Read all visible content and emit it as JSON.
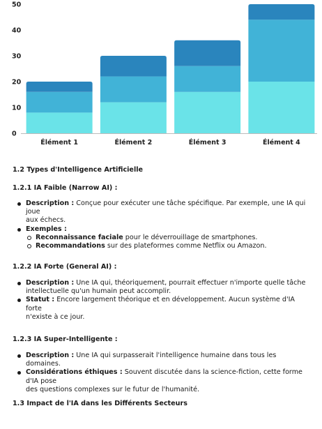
{
  "chart_data": {
    "type": "bar",
    "stacked": true,
    "categories": [
      "Élément 1",
      "Élément 2",
      "Élément 3",
      "Élément 4"
    ],
    "series": [
      {
        "values": [
          8,
          12,
          16,
          20
        ],
        "color": "#6ae3e8"
      },
      {
        "values": [
          8,
          10,
          10,
          24
        ],
        "color": "#41b3d7"
      },
      {
        "values": [
          4,
          8,
          10,
          6
        ],
        "color": "#2a85bd"
      }
    ],
    "ylim": [
      0,
      50
    ],
    "yticks": [
      0,
      10,
      20,
      30,
      40,
      50
    ],
    "grid": false,
    "legend": "none"
  },
  "sections": {
    "s12": {
      "title": "1.2 Types d'Intelligence Artificielle"
    },
    "s121": {
      "title": "1.2.1 IA Faible (Narrow AI) :",
      "desc_label": "Description :",
      "desc_text_1": " Conçue pour exécuter une tâche spécifique. Par exemple, une IA qui joue",
      "desc_text_2": "aux échecs.",
      "ex_label": "Exemples :",
      "ex1_bold": "Reconnaissance faciale",
      "ex1_text": " pour le déverrouillage de smartphones.",
      "ex2_bold": "Recommandations",
      "ex2_text": " sur des plateformes comme Netflix ou Amazon."
    },
    "s122": {
      "title": "1.2.2 IA Forte (General AI) :",
      "desc_label": "Description :",
      "desc_text_1": " Une IA qui, théoriquement, pourrait effectuer n'importe quelle tâche",
      "desc_text_2": "intellectuelle qu'un humain peut accomplir.",
      "stat_label": "Statut :",
      "stat_text_1": " Encore largement théorique et en développement. Aucun système d'IA forte",
      "stat_text_2": "n'existe à ce jour."
    },
    "s123": {
      "title": "1.2.3 IA Super-Intelligente :",
      "desc_label": "Description :",
      "desc_text": " Une IA qui surpasserait l'intelligence humaine dans tous les domaines.",
      "eth_label": "Considérations éthiques :",
      "eth_text_1": " Souvent discutée dans la science-fiction, cette forme d'IA pose",
      "eth_text_2": "des questions complexes sur le futur de l'humanité."
    },
    "s13": {
      "title": "1.3 Impact de l'IA dans les Différents Secteurs"
    }
  }
}
